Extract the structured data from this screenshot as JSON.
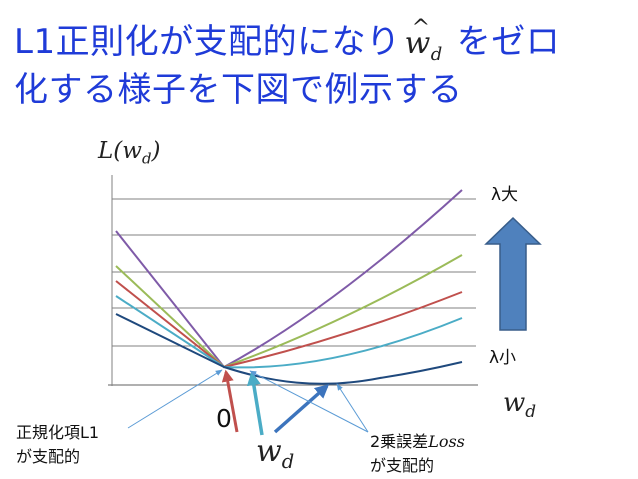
{
  "title": {
    "line1_before": "L1正則化が支配的になり",
    "line1_symbol": "w",
    "line1_symbol_sub": "d",
    "line1_after": "をゼロ",
    "line2": "化する様子を下図で例示する"
  },
  "axes": {
    "y_label_main": "L(w",
    "y_label_sub": "d",
    "y_label_close": ")",
    "x_label_main": "w",
    "x_label_sub": "d"
  },
  "lambda_arrow": {
    "top_label": "λ大",
    "bottom_label": "λ小",
    "color": "#4f81bd"
  },
  "annotations": {
    "zero_label": "0",
    "center_label_main": "w",
    "center_label_sub": "d",
    "left_note_line1": "正規化項L1",
    "left_note_line2": "が支配的",
    "right_note_prefix": "2乗誤差",
    "right_note_italic": "Loss",
    "right_note_line2": "が支配的"
  },
  "colors": {
    "title": "#1f3bd8",
    "curve_1": "#7f5ba8",
    "curve_2": "#9bbb59",
    "curve_3": "#c0504d",
    "curve_4": "#4bacc6",
    "curve_5": "#1f497d",
    "arrow_blue": "#3c74bd",
    "arrow_cyan": "#4bacc6",
    "arrow_red": "#c0504d",
    "grid": "#808080"
  }
}
